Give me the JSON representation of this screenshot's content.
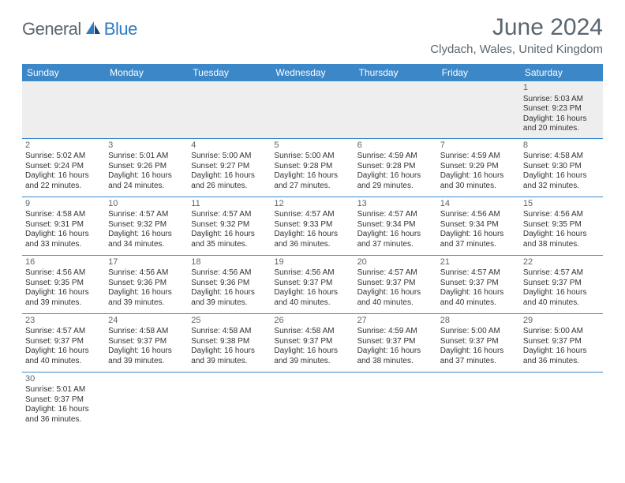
{
  "branding": {
    "logo_part1": "General",
    "logo_part2": "Blue",
    "logo_color1": "#5a6670",
    "logo_color2": "#2f7bc3"
  },
  "header": {
    "title": "June 2024",
    "location": "Clydach, Wales, United Kingdom"
  },
  "colors": {
    "header_bg": "#3b87c8",
    "header_text": "#ffffff",
    "row_border": "#3b87c8",
    "firstrow_bg": "#eeeeee",
    "text": "#333333",
    "muted": "#5a6670"
  },
  "weekdays": [
    "Sunday",
    "Monday",
    "Tuesday",
    "Wednesday",
    "Thursday",
    "Friday",
    "Saturday"
  ],
  "calendar": {
    "first_day_of_week_index": 6,
    "days": [
      {
        "n": 1,
        "sunrise": "5:03 AM",
        "sunset": "9:23 PM",
        "daylight": "16 hours and 20 minutes."
      },
      {
        "n": 2,
        "sunrise": "5:02 AM",
        "sunset": "9:24 PM",
        "daylight": "16 hours and 22 minutes."
      },
      {
        "n": 3,
        "sunrise": "5:01 AM",
        "sunset": "9:26 PM",
        "daylight": "16 hours and 24 minutes."
      },
      {
        "n": 4,
        "sunrise": "5:00 AM",
        "sunset": "9:27 PM",
        "daylight": "16 hours and 26 minutes."
      },
      {
        "n": 5,
        "sunrise": "5:00 AM",
        "sunset": "9:28 PM",
        "daylight": "16 hours and 27 minutes."
      },
      {
        "n": 6,
        "sunrise": "4:59 AM",
        "sunset": "9:28 PM",
        "daylight": "16 hours and 29 minutes."
      },
      {
        "n": 7,
        "sunrise": "4:59 AM",
        "sunset": "9:29 PM",
        "daylight": "16 hours and 30 minutes."
      },
      {
        "n": 8,
        "sunrise": "4:58 AM",
        "sunset": "9:30 PM",
        "daylight": "16 hours and 32 minutes."
      },
      {
        "n": 9,
        "sunrise": "4:58 AM",
        "sunset": "9:31 PM",
        "daylight": "16 hours and 33 minutes."
      },
      {
        "n": 10,
        "sunrise": "4:57 AM",
        "sunset": "9:32 PM",
        "daylight": "16 hours and 34 minutes."
      },
      {
        "n": 11,
        "sunrise": "4:57 AM",
        "sunset": "9:32 PM",
        "daylight": "16 hours and 35 minutes."
      },
      {
        "n": 12,
        "sunrise": "4:57 AM",
        "sunset": "9:33 PM",
        "daylight": "16 hours and 36 minutes."
      },
      {
        "n": 13,
        "sunrise": "4:57 AM",
        "sunset": "9:34 PM",
        "daylight": "16 hours and 37 minutes."
      },
      {
        "n": 14,
        "sunrise": "4:56 AM",
        "sunset": "9:34 PM",
        "daylight": "16 hours and 37 minutes."
      },
      {
        "n": 15,
        "sunrise": "4:56 AM",
        "sunset": "9:35 PM",
        "daylight": "16 hours and 38 minutes."
      },
      {
        "n": 16,
        "sunrise": "4:56 AM",
        "sunset": "9:35 PM",
        "daylight": "16 hours and 39 minutes."
      },
      {
        "n": 17,
        "sunrise": "4:56 AM",
        "sunset": "9:36 PM",
        "daylight": "16 hours and 39 minutes."
      },
      {
        "n": 18,
        "sunrise": "4:56 AM",
        "sunset": "9:36 PM",
        "daylight": "16 hours and 39 minutes."
      },
      {
        "n": 19,
        "sunrise": "4:56 AM",
        "sunset": "9:37 PM",
        "daylight": "16 hours and 40 minutes."
      },
      {
        "n": 20,
        "sunrise": "4:57 AM",
        "sunset": "9:37 PM",
        "daylight": "16 hours and 40 minutes."
      },
      {
        "n": 21,
        "sunrise": "4:57 AM",
        "sunset": "9:37 PM",
        "daylight": "16 hours and 40 minutes."
      },
      {
        "n": 22,
        "sunrise": "4:57 AM",
        "sunset": "9:37 PM",
        "daylight": "16 hours and 40 minutes."
      },
      {
        "n": 23,
        "sunrise": "4:57 AM",
        "sunset": "9:37 PM",
        "daylight": "16 hours and 40 minutes."
      },
      {
        "n": 24,
        "sunrise": "4:58 AM",
        "sunset": "9:37 PM",
        "daylight": "16 hours and 39 minutes."
      },
      {
        "n": 25,
        "sunrise": "4:58 AM",
        "sunset": "9:38 PM",
        "daylight": "16 hours and 39 minutes."
      },
      {
        "n": 26,
        "sunrise": "4:58 AM",
        "sunset": "9:37 PM",
        "daylight": "16 hours and 39 minutes."
      },
      {
        "n": 27,
        "sunrise": "4:59 AM",
        "sunset": "9:37 PM",
        "daylight": "16 hours and 38 minutes."
      },
      {
        "n": 28,
        "sunrise": "5:00 AM",
        "sunset": "9:37 PM",
        "daylight": "16 hours and 37 minutes."
      },
      {
        "n": 29,
        "sunrise": "5:00 AM",
        "sunset": "9:37 PM",
        "daylight": "16 hours and 36 minutes."
      },
      {
        "n": 30,
        "sunrise": "5:01 AM",
        "sunset": "9:37 PM",
        "daylight": "16 hours and 36 minutes."
      }
    ]
  },
  "labels": {
    "sunrise": "Sunrise:",
    "sunset": "Sunset:",
    "daylight": "Daylight:"
  }
}
